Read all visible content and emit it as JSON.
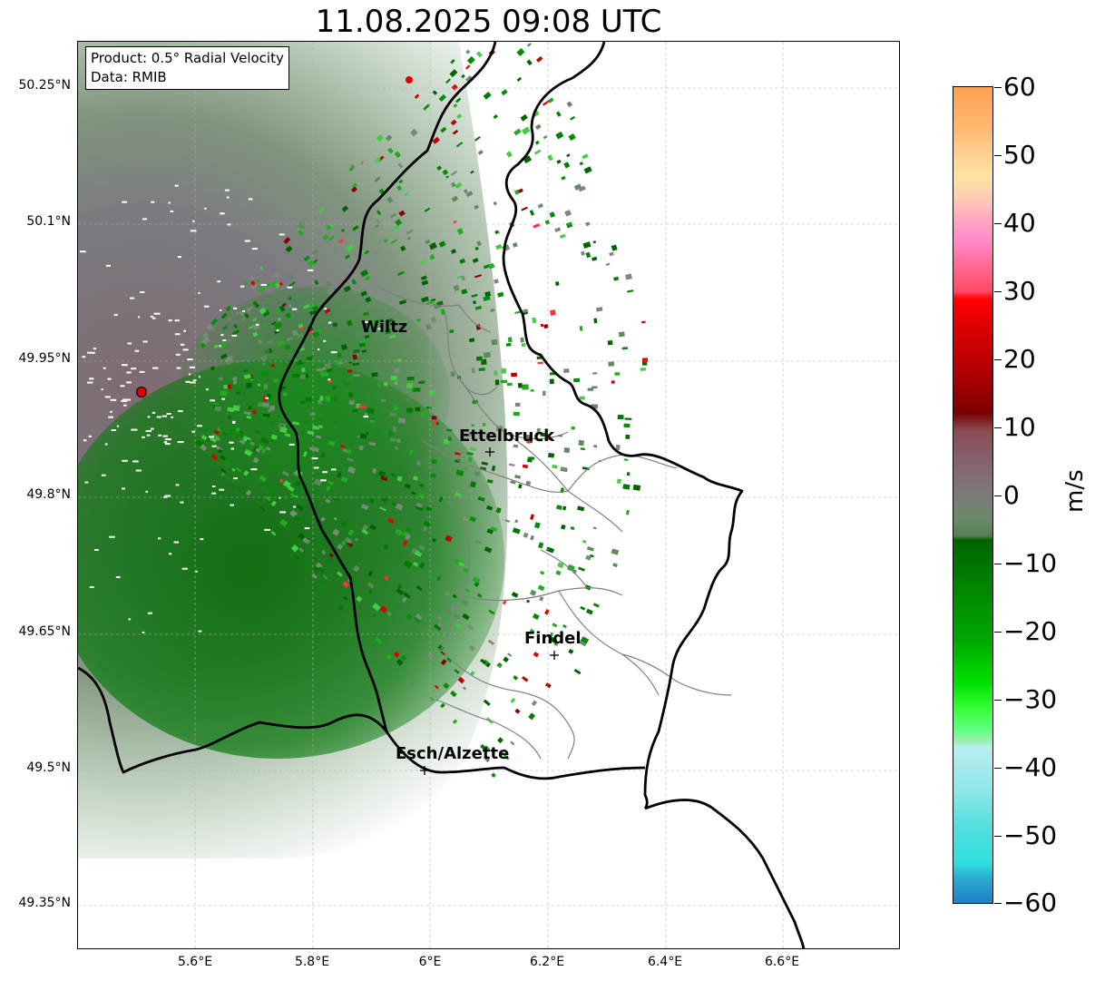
{
  "title": "11.08.2025 09:08 UTC",
  "info": {
    "product": "Product: 0.5° Radial Velocity",
    "data_source": "Data: RMIB"
  },
  "axes": {
    "lat_labels": [
      "50.25°N",
      "50.1°N",
      "49.95°N",
      "49.8°N",
      "49.65°N",
      "49.5°N",
      "49.35°N"
    ],
    "lon_labels": [
      "5.6°E",
      "5.8°E",
      "6°E",
      "6.2°E",
      "6.4°E",
      "6.6°E"
    ]
  },
  "cities": [
    {
      "name": "Wiltz"
    },
    {
      "name": "Ettelbruck"
    },
    {
      "name": "Findel"
    },
    {
      "name": "Esch/Alzette"
    }
  ],
  "colorbar": {
    "unit": "m/s",
    "tick_labels": [
      "60",
      "50",
      "40",
      "30",
      "20",
      "10",
      "0",
      "−10",
      "−20",
      "−30",
      "−40",
      "−50",
      "−60"
    ],
    "min": -60,
    "max": 60
  },
  "colors": {
    "border": "#000000",
    "admin_lines": "#808080",
    "radar_marker": "#e00000",
    "grid": "#b0b0b0"
  }
}
